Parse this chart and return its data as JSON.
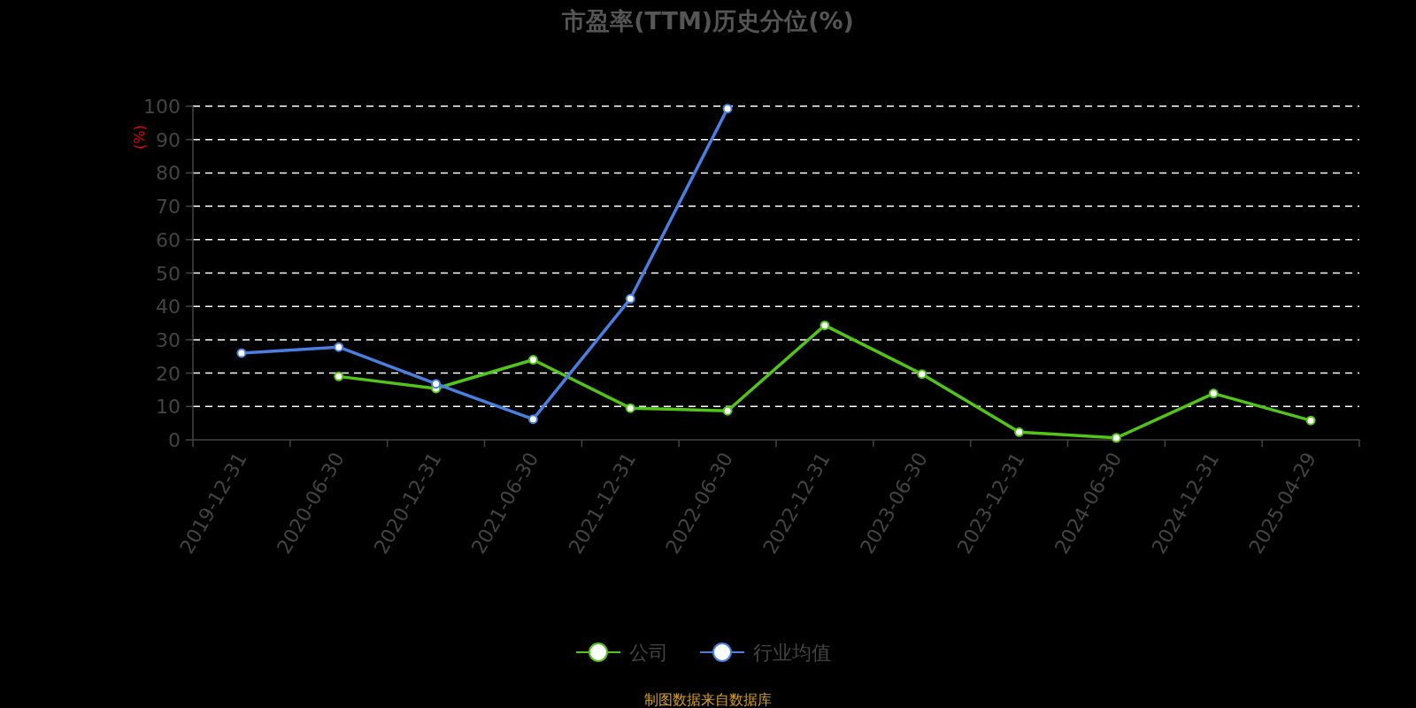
{
  "chart_data": {
    "type": "line",
    "title": "市盈率(TTM)历史分位(%)",
    "ylabel": "(%)",
    "categories": [
      "2019-12-31",
      "2020-06-30",
      "2020-12-31",
      "2021-06-30",
      "2021-12-31",
      "2022-06-30",
      "2022-12-31",
      "2023-06-30",
      "2023-12-31",
      "2024-06-30",
      "2024-12-31",
      "2025-04-29"
    ],
    "series": [
      {
        "name": "公司",
        "color": "#52c41a",
        "values": [
          null,
          19.0,
          15.4,
          24.0,
          9.5,
          8.7,
          34.3,
          19.7,
          2.3,
          0.6,
          13.9,
          5.8
        ]
      },
      {
        "name": "行业均值",
        "color": "#4a7fe0",
        "values": [
          26.0,
          27.8,
          16.8,
          6.2,
          42.3,
          99.3,
          null,
          null,
          null,
          null,
          null,
          null
        ]
      }
    ],
    "ylim": [
      0,
      100
    ],
    "yticks": [
      0,
      10,
      20,
      30,
      40,
      50,
      60,
      70,
      80,
      90,
      100
    ],
    "grid": "y",
    "legend": "bottom",
    "marker": "circle",
    "line_style": "solid",
    "annotations": [
      "制图数据来自数据库"
    ]
  }
}
